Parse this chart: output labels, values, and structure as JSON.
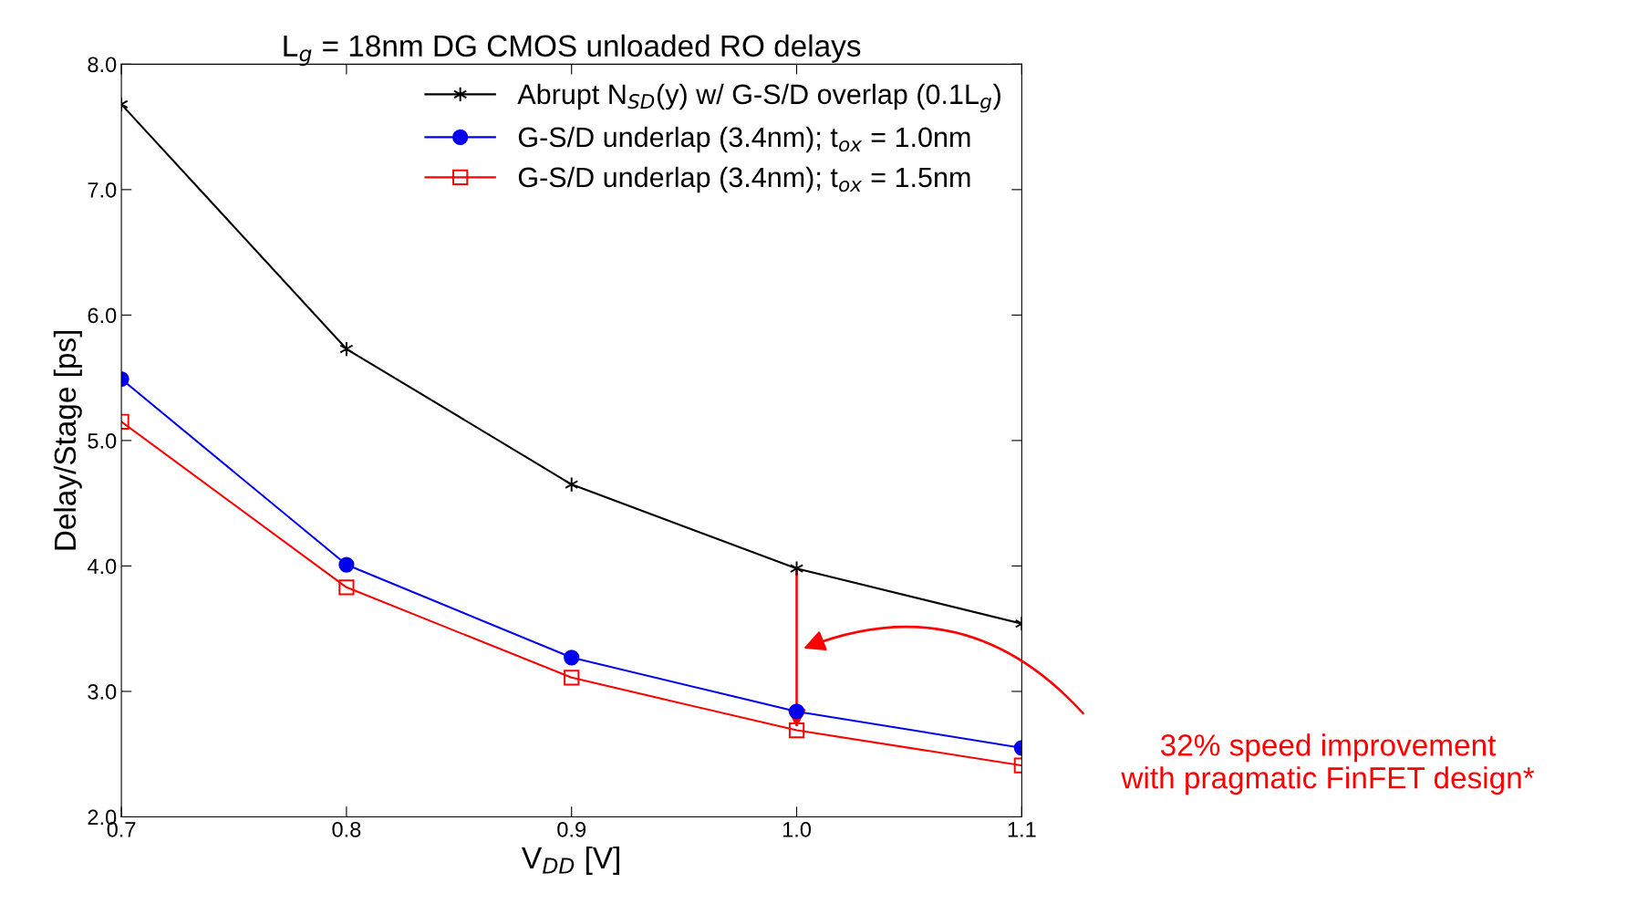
{
  "chart_data": {
    "type": "line",
    "title": "L$_{g}$ = 18nm DG CMOS unloaded RO delays",
    "xlabel": "V$_{DD}$ [V]",
    "ylabel": "Delay/Stage [ps]",
    "x": [
      0.7,
      0.8,
      0.9,
      1.0,
      1.1
    ],
    "series": [
      {
        "name": "Abrupt N$_{SD}$(y) w/ G-S/D overlap (0.1L$_{g}$)",
        "color": "#000000",
        "marker": "cross",
        "values": [
          7.68,
          5.73,
          4.65,
          3.98,
          3.54
        ]
      },
      {
        "name": "G-S/D underlap (3.4nm); t$_{ox}$ = 1.0nm",
        "color": "#0000ee",
        "marker": "circle",
        "values": [
          5.49,
          4.01,
          3.27,
          2.84,
          2.55
        ]
      },
      {
        "name": "G-S/D underlap (3.4nm); t$_{ox}$ = 1.5nm",
        "color": "#ff0000",
        "marker": "square",
        "values": [
          5.15,
          3.83,
          3.11,
          2.69,
          2.41
        ]
      }
    ],
    "xlim": [
      0.7,
      1.1
    ],
    "xticks": [
      0.7,
      0.8,
      0.9,
      {
        "value": 1.0,
        "label": "1.0"
      },
      1.1
    ],
    "ylim": [
      2.0,
      8.0
    ],
    "yticks": [
      {
        "value": 2,
        "label": "2.0"
      },
      {
        "value": 3,
        "label": "3.0"
      },
      {
        "value": 4,
        "label": "4.0"
      },
      {
        "value": 5,
        "label": "5.0"
      },
      {
        "value": 6,
        "label": "6.0"
      },
      {
        "value": 7,
        "label": "7.0"
      },
      {
        "value": 8,
        "label": "8.0"
      }
    ],
    "grid": false,
    "legend": "top right",
    "line_style": "solid",
    "annotations": [
      "32% speed improvement\nwith pragmatic FinFET design*"
    ]
  }
}
